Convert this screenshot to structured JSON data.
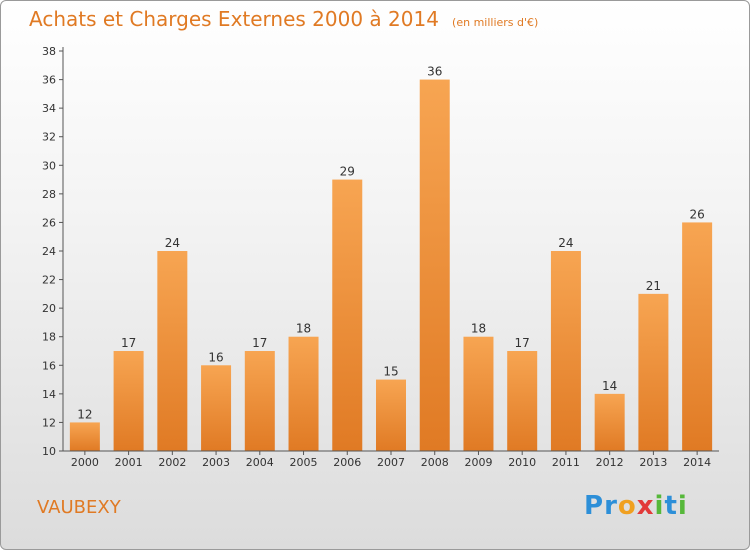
{
  "title": "Achats et Charges Externes 2000 à 2014",
  "subtitle": "(en milliers d'€)",
  "commune": "VAUBEXY",
  "logo": {
    "letters": [
      {
        "ch": "P",
        "color": "#2d8fd8"
      },
      {
        "ch": "r",
        "color": "#2d8fd8"
      },
      {
        "ch": "o",
        "color": "#f0a020"
      },
      {
        "ch": "x",
        "color": "#e23a3a"
      },
      {
        "ch": "i",
        "color": "#56b83a"
      },
      {
        "ch": "t",
        "color": "#2d8fd8"
      },
      {
        "ch": "i",
        "color": "#56b83a"
      }
    ]
  },
  "colors": {
    "bar_light": "#f7a552",
    "bar_dark": "#e07a24",
    "accent": "#e07a24"
  },
  "chart_data": {
    "type": "bar",
    "title": "Achats et Charges Externes 2000 à 2014",
    "subtitle": "(en milliers d'€)",
    "categories": [
      "2000",
      "2001",
      "2002",
      "2003",
      "2004",
      "2005",
      "2006",
      "2007",
      "2008",
      "2009",
      "2010",
      "2011",
      "2012",
      "2013",
      "2014"
    ],
    "values": [
      12,
      17,
      24,
      16,
      17,
      18,
      29,
      15,
      36,
      18,
      17,
      24,
      14,
      21,
      26
    ],
    "ylim": [
      10,
      38
    ],
    "yticks": [
      10,
      12,
      14,
      16,
      18,
      20,
      22,
      24,
      26,
      28,
      30,
      32,
      34,
      36,
      38
    ],
    "grid": false,
    "legend": "none"
  }
}
